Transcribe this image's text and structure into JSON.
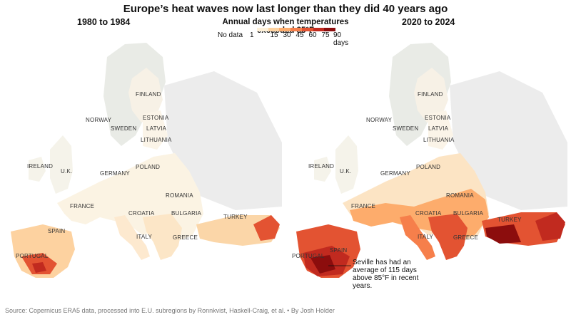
{
  "title": "Europe’s heat waves now last longer than they did 40 years ago",
  "maps": [
    {
      "period": "1980 to 1984"
    },
    {
      "period": "2020 to 2024"
    }
  ],
  "legend": {
    "title": "Annual days when temperatures exceeded 85°F",
    "no_data_label": "No data",
    "first_label": "1",
    "tick_labels": [
      "15",
      "30",
      "45",
      "60",
      "75",
      "90 days"
    ],
    "colors": [
      "#fdf0d8",
      "#fdd2a0",
      "#fdac6c",
      "#f67f4b",
      "#e35332",
      "#c12a1f",
      "#8c0d0d"
    ]
  },
  "country_labels": [
    "FINLAND",
    "NORWAY",
    "ESTONIA",
    "SWEDEN",
    "LATVIA",
    "LITHUANIA",
    "IRELAND",
    "U.K.",
    "GERMANY",
    "POLAND",
    "FRANCE",
    "ROMANIA",
    "CROATIA",
    "BULGARIA",
    "TURKEY",
    "ITALY",
    "GREECE",
    "PORTUGAL",
    "SPAIN"
  ],
  "annotation": "Seville has had an average of 115 days above 85°F in recent years.",
  "source": "Source: Copernicus ERA5 data, processed into E.U. subregions by Ronnkvist, Haskell-Craig, et al.  •  By Josh Holder"
}
